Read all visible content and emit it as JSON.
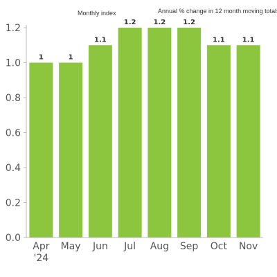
{
  "header": {
    "left_label": "Monthly index",
    "right_label": "Annual % change in 12 month moving totals"
  },
  "colors": {
    "bar": "#8cc63f",
    "axis": "#b8b8b8",
    "text": "#555555"
  },
  "chart_data": {
    "type": "bar",
    "categories": [
      "Apr\n'24",
      "May",
      "Jun",
      "Jul",
      "Aug",
      "Sep",
      "Oct",
      "Nov"
    ],
    "values": [
      1.0,
      1.0,
      1.1,
      1.2,
      1.2,
      1.2,
      1.1,
      1.1
    ],
    "data_labels": [
      "1",
      "1",
      "1.1",
      "1.2",
      "1.2",
      "1.2",
      "1.1",
      "1.1"
    ],
    "y_ticks": [
      "0.0",
      "0.2",
      "0.4",
      "0.6",
      "0.8",
      "1.0",
      "1.2"
    ],
    "ylim": [
      0,
      1.2
    ],
    "grid": false,
    "legend": "none"
  }
}
